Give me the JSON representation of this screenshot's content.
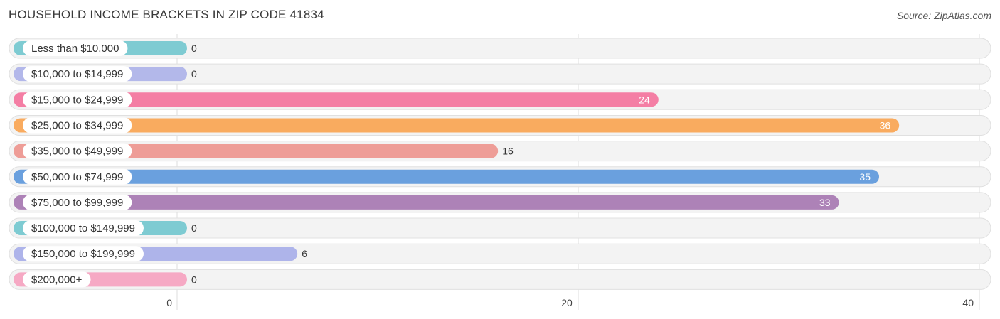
{
  "header": {
    "title": "HOUSEHOLD INCOME BRACKETS IN ZIP CODE 41834",
    "source": "Source: ZipAtlas.com"
  },
  "chart_data": {
    "type": "bar",
    "orientation": "horizontal",
    "title": "HOUSEHOLD INCOME BRACKETS IN ZIP CODE 41834",
    "xlabel": "",
    "ylabel": "",
    "xlim": [
      0,
      40
    ],
    "ticks": [
      0,
      20,
      40
    ],
    "grid": true,
    "categories": [
      "Less than $10,000",
      "$10,000 to $14,999",
      "$15,000 to $24,999",
      "$25,000 to $34,999",
      "$35,000 to $49,999",
      "$50,000 to $74,999",
      "$75,000 to $99,999",
      "$100,000 to $149,999",
      "$150,000 to $199,999",
      "$200,000+"
    ],
    "values": [
      0,
      0,
      24,
      36,
      16,
      35,
      33,
      0,
      6,
      0
    ],
    "colors": [
      "#7ecbd2",
      "#b3b8ea",
      "#f47ea4",
      "#f9ab5f",
      "#ee9d97",
      "#6aa0de",
      "#ad82b7",
      "#7ecbd2",
      "#aeb4ea",
      "#f6a9c4"
    ]
  }
}
